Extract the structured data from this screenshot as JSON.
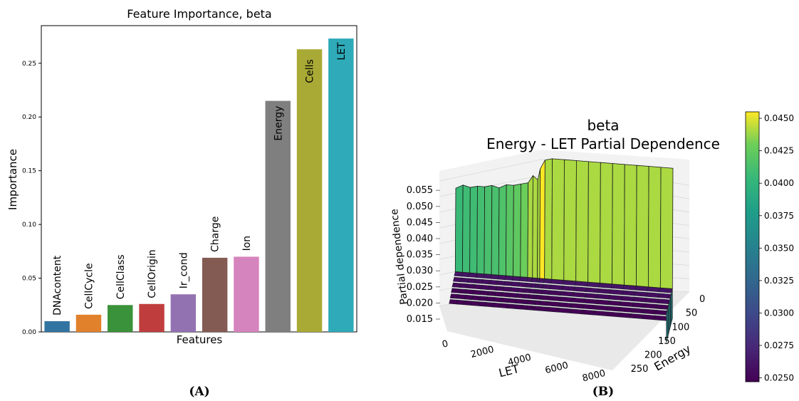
{
  "panel_labels": [
    "(A)",
    "(B)"
  ],
  "chart_data": [
    {
      "type": "bar",
      "title": "Feature Importance, beta",
      "xlabel": "Features",
      "ylabel": "Importance",
      "ylim": [
        0,
        0.285
      ],
      "yticks": [
        "0.00",
        "0.05",
        "0.10",
        "0.15",
        "0.20",
        "0.25"
      ],
      "ytick_values": [
        0,
        0.05,
        0.1,
        0.15,
        0.2,
        0.25
      ],
      "categories": [
        "DNAcontent",
        "CellCycle",
        "CellClass",
        "CellOrigin",
        "Ir_cond",
        "Charge",
        "Ion",
        "Energy",
        "Cells",
        "LET"
      ],
      "values": [
        0.01,
        0.016,
        0.025,
        0.026,
        0.035,
        0.069,
        0.07,
        0.215,
        0.263,
        0.273
      ],
      "colors": [
        "#3274a1",
        "#e1812c",
        "#3a923a",
        "#c03d3e",
        "#9372b2",
        "#845b53",
        "#d684bd",
        "#7f7f7f",
        "#a9aa35",
        "#2eaab8"
      ],
      "label_placement": "rotated category labels above short bars, inside tall bars"
    },
    {
      "type": "surface",
      "title_line1": "beta",
      "title_line2": "Energy - LET Partial Dependence",
      "xlabel": "LET",
      "ylabel": "Energy",
      "zlabel": "Partial dependence",
      "x_ticks": [
        "0",
        "2000",
        "4000",
        "6000",
        "8000"
      ],
      "x_tick_values": [
        0,
        2000,
        4000,
        6000,
        8000
      ],
      "y_ticks": [
        "0",
        "50",
        "100",
        "150",
        "200",
        "250"
      ],
      "y_tick_values": [
        0,
        50,
        100,
        150,
        200,
        250
      ],
      "z_ticks": [
        "0.015",
        "0.020",
        "0.025",
        "0.030",
        "0.035",
        "0.040",
        "0.045",
        "0.050",
        "0.055"
      ],
      "z_tick_values": [
        0.015,
        0.02,
        0.025,
        0.03,
        0.035,
        0.04,
        0.045,
        0.05,
        0.055
      ],
      "colormap": "viridis",
      "colorbar_ticks": [
        "0.0250",
        "0.0275",
        "0.0300",
        "0.0325",
        "0.0350",
        "0.0375",
        "0.0400",
        "0.0425",
        "0.0450"
      ],
      "colorbar_tick_values": [
        0.025,
        0.0275,
        0.03,
        0.0325,
        0.035,
        0.0375,
        0.04,
        0.0425,
        0.045
      ],
      "colorbar_range": [
        0.0247,
        0.0455
      ],
      "back_wall_profile": {
        "let_values": [
          0,
          300,
          600,
          900,
          1200,
          1500,
          1800,
          2100,
          2400,
          2700,
          3000,
          3200,
          3400,
          3500,
          3700,
          4000,
          4500,
          5000,
          5500,
          6000,
          6500,
          7000,
          7500,
          8000,
          8500,
          9000
        ],
        "partial_dependence": [
          0.052,
          0.053,
          0.0525,
          0.053,
          0.053,
          0.0535,
          0.053,
          0.054,
          0.054,
          0.0545,
          0.055,
          0.057,
          0.056,
          0.059,
          0.0615,
          0.062,
          0.062,
          0.062,
          0.062,
          0.062,
          0.062,
          0.062,
          0.062,
          0.062,
          0.062,
          0.062
        ]
      },
      "floor_value_low_energy": 0.03,
      "floor_value_high_energy": 0.028
    }
  ]
}
